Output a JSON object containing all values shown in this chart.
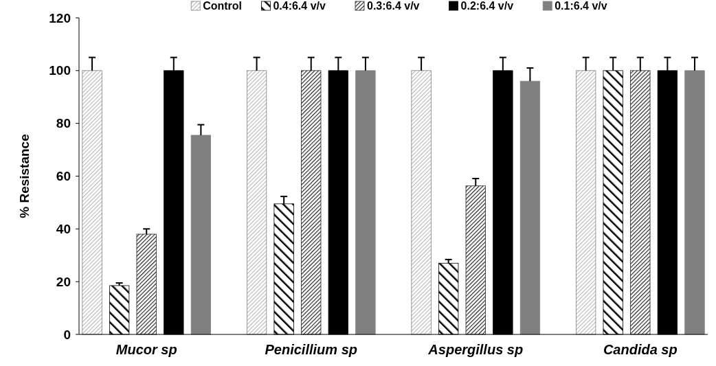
{
  "chart_data": {
    "type": "bar",
    "ylabel": "% Resistance",
    "categories": [
      "Mucor sp",
      "Penicillium sp",
      "Aspergillus sp",
      "Candida sp"
    ],
    "ylim": [
      0,
      120
    ],
    "yticks": [
      0,
      20,
      40,
      60,
      80,
      100,
      120
    ],
    "grid": false,
    "legend": "top",
    "series": [
      {
        "name": "Control",
        "color": "#7f7f7f",
        "values": [
          100,
          100,
          100,
          100
        ],
        "errors": [
          [
            100,
            105
          ],
          [
            100,
            105
          ],
          [
            100,
            105
          ],
          [
            100,
            105
          ]
        ]
      },
      {
        "name": "0.4:6.4 v/v",
        "color": "#000000",
        "values": [
          18.5,
          49.5,
          27,
          100
        ],
        "errors": [
          [
            18.5,
            19.5
          ],
          [
            49.5,
            52.3
          ],
          [
            27,
            28.4
          ],
          [
            100,
            105
          ]
        ]
      },
      {
        "name": "0.3:6.4 v/v",
        "color": "#262626",
        "values": [
          38,
          100,
          56.3,
          100
        ],
        "errors": [
          [
            38,
            40
          ],
          [
            100,
            105
          ],
          [
            56.3,
            59.1
          ],
          [
            100,
            105
          ]
        ]
      },
      {
        "name": "0.2:6.4 v/v",
        "color": "#000000",
        "values": [
          100,
          100,
          100,
          100
        ],
        "errors": [
          [
            100,
            105
          ],
          [
            100,
            105
          ],
          [
            100,
            105
          ],
          [
            100,
            105
          ]
        ]
      },
      {
        "name": "0.1:6.4 v/v",
        "color": "#808080",
        "values": [
          75.5,
          100,
          96,
          100
        ],
        "errors": [
          [
            75.5,
            79.5
          ],
          [
            100,
            105
          ],
          [
            96,
            101
          ],
          [
            100,
            105
          ]
        ]
      }
    ]
  }
}
